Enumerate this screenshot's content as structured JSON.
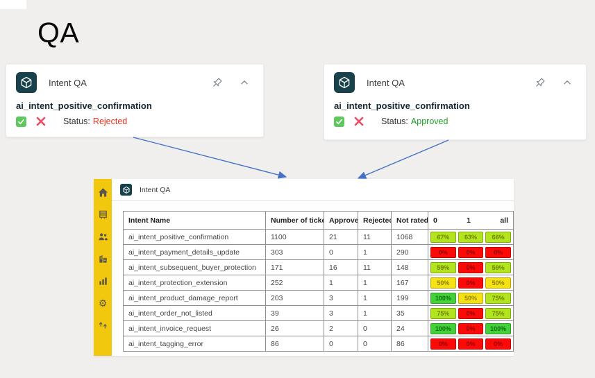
{
  "slide": {
    "title": "QA"
  },
  "colors": {
    "background": "#F0EFEE",
    "accent_yellow": "#F2C80F",
    "app_icon_teal": "#17414B",
    "arrow_blue": "#4472C4",
    "rejected_red": "#E8321E",
    "approved_green": "#1F9D27",
    "badge_green": "#43D139",
    "badge_lime": "#B2E51D",
    "badge_yellow": "#F6E214",
    "badge_red": "#FC0A07"
  },
  "icons": {
    "app": "cube-icon",
    "pin": "pin-icon",
    "collapse": "chevron-up-icon",
    "approve": "check-icon",
    "reject": "x-icon",
    "sidebar": [
      "home-icon",
      "catalog-icon",
      "people-icon",
      "organization-icon",
      "bar-chart-icon",
      "gear-icon",
      "pipelines-icon"
    ]
  },
  "cards": [
    {
      "app_label": "Intent QA",
      "intent": "ai_intent_positive_confirmation",
      "status_label": "Status:",
      "status_value": "Rejected",
      "status_color": "#E8321E"
    },
    {
      "app_label": "Intent QA",
      "intent": "ai_intent_positive_confirmation",
      "status_label": "Status:",
      "status_value": "Approved",
      "status_color": "#1F9D27"
    }
  ],
  "panel": {
    "app_label": "Intent QA",
    "table": {
      "headers": [
        "Intent Name",
        "Number of tickets",
        "Approved",
        "Rejected",
        "Not rated"
      ],
      "badge_headers": [
        "0",
        "1",
        "all"
      ],
      "rows": [
        {
          "name": "ai_intent_positive_confirmation",
          "tickets": "1100",
          "approved": "21",
          "rejected": "11",
          "not_rated": "1068",
          "badges": [
            {
              "value": "67%",
              "level": "lime"
            },
            {
              "value": "63%",
              "level": "lime"
            },
            {
              "value": "66%",
              "level": "lime"
            }
          ]
        },
        {
          "name": "ai_intent_payment_details_update",
          "tickets": "303",
          "approved": "0",
          "rejected": "1",
          "not_rated": "290",
          "badges": [
            {
              "value": "0%",
              "level": "red"
            },
            {
              "value": "0%",
              "level": "red"
            },
            {
              "value": "0%",
              "level": "red"
            }
          ]
        },
        {
          "name": "ai_intent_subsequent_buyer_protection",
          "tickets": "171",
          "approved": "16",
          "rejected": "11",
          "not_rated": "148",
          "badges": [
            {
              "value": "59%",
              "level": "lime"
            },
            {
              "value": "0%",
              "level": "red"
            },
            {
              "value": "59%",
              "level": "lime"
            }
          ]
        },
        {
          "name": "ai_intent_protection_extension",
          "tickets": "252",
          "approved": "1",
          "rejected": "1",
          "not_rated": "167",
          "badges": [
            {
              "value": "50%",
              "level": "yellow"
            },
            {
              "value": "0%",
              "level": "red"
            },
            {
              "value": "50%",
              "level": "yellow"
            }
          ]
        },
        {
          "name": "ai_intent_product_damage_report",
          "tickets": "203",
          "approved": "3",
          "rejected": "1",
          "not_rated": "199",
          "badges": [
            {
              "value": "100%",
              "level": "green"
            },
            {
              "value": "50%",
              "level": "yellow"
            },
            {
              "value": "75%",
              "level": "lime"
            }
          ]
        },
        {
          "name": "ai_intent_order_not_listed",
          "tickets": "39",
          "approved": "3",
          "rejected": "1",
          "not_rated": "35",
          "badges": [
            {
              "value": "75%",
              "level": "lime"
            },
            {
              "value": "0%",
              "level": "red"
            },
            {
              "value": "75%",
              "level": "lime"
            }
          ]
        },
        {
          "name": "ai_intent_invoice_request",
          "tickets": "26",
          "approved": "2",
          "rejected": "0",
          "not_rated": "24",
          "badges": [
            {
              "value": "100%",
              "level": "green"
            },
            {
              "value": "0%",
              "level": "red"
            },
            {
              "value": "100%",
              "level": "green"
            }
          ]
        },
        {
          "name": "ai_intent_tagging_error",
          "tickets": "86",
          "approved": "0",
          "rejected": "0",
          "not_rated": "86",
          "badges": [
            {
              "value": "0%",
              "level": "red"
            },
            {
              "value": "0%",
              "level": "red"
            },
            {
              "value": "0%",
              "level": "red"
            }
          ]
        }
      ]
    }
  }
}
